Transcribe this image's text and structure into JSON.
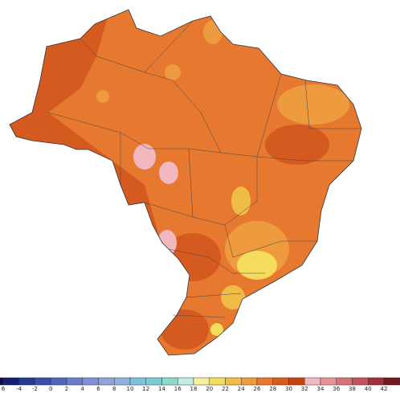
{
  "legend": {
    "labels": [
      "6",
      "-4",
      "-2",
      "0",
      "2",
      "4",
      "6",
      "8",
      "10",
      "12",
      "14",
      "16",
      "18",
      "20",
      "22",
      "24",
      "26",
      "28",
      "30",
      "32",
      "34",
      "36",
      "38",
      "40",
      "42"
    ],
    "colors": [
      "#0b0b4a",
      "#14206e",
      "#253a8c",
      "#3a4fa6",
      "#5066b8",
      "#6a7dc6",
      "#8190d0",
      "#95a2d8",
      "#8fb2dc",
      "#80c0dc",
      "#7ccad2",
      "#8fd8cc",
      "#c4ece4",
      "#f4f0a0",
      "#f4dc5c",
      "#f0bc48",
      "#ee9a3e",
      "#e67830",
      "#d45a20",
      "#c24416",
      "#f2b8c0",
      "#e6929a",
      "#d47276",
      "#c0545a",
      "#a0303a",
      "#701820"
    ]
  }
}
